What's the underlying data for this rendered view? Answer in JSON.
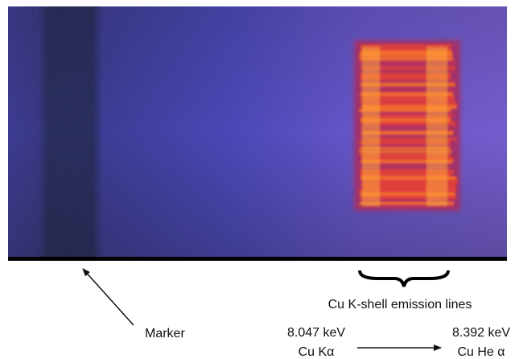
{
  "annotations": {
    "marker": "Marker",
    "emission_lines": "Cu K-shell emission lines",
    "line1_energy": "8.047 keV",
    "line1_name": "Cu Kα",
    "line2_energy": "8.392 keV",
    "line2_name": "Cu He α"
  }
}
